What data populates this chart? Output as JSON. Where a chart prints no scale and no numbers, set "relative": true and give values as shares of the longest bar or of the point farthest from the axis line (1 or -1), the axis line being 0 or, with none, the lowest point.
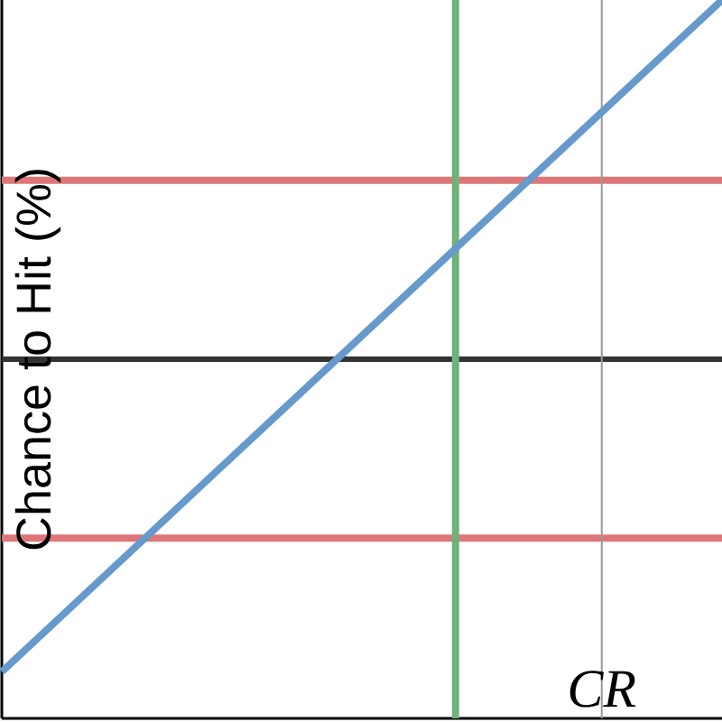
{
  "chart_data": {
    "type": "line",
    "relative": true,
    "ylabel": "Chance to Hit (%)",
    "categories": [
      null,
      null
    ],
    "series": [
      {
        "color": "#6699cc",
        "values": [
          0.065,
          1
        ]
      }
    ],
    "ref_lines": [
      {
        "axis": "y",
        "value": 0.749,
        "color": "#dd7777"
      },
      {
        "axis": "y",
        "value": 0.251,
        "color": "#dd7777"
      },
      {
        "axis": "y",
        "value": 0.5,
        "color": "#333333"
      }
    ],
    "annotations": [
      "CR"
    ]
  }
}
